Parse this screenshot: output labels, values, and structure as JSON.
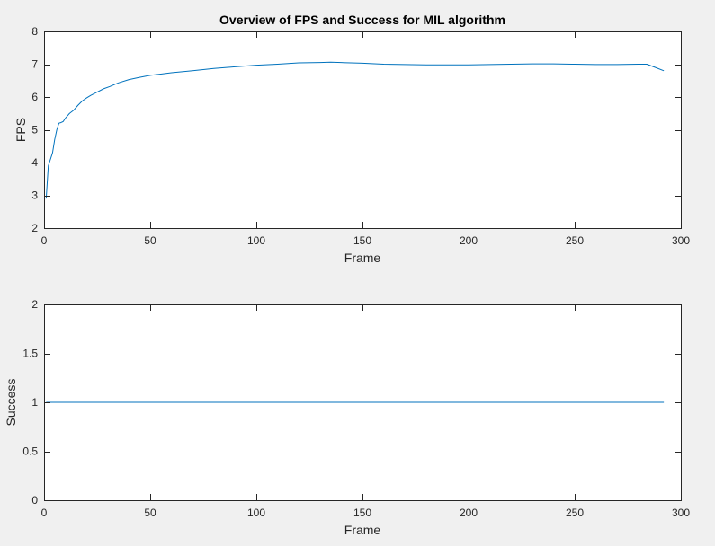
{
  "figure": {
    "background": "#f0f0f0",
    "axes_background": "#ffffff",
    "axis_color": "#262626",
    "line_color": "#0072bd"
  },
  "chart_data": [
    {
      "type": "line",
      "title": "Overview of FPS and Success for MIL algorithm",
      "xlabel": "Frame",
      "ylabel": "FPS",
      "xlim": [
        0,
        300
      ],
      "ylim": [
        2,
        8
      ],
      "xticks": [
        0,
        50,
        100,
        150,
        200,
        250,
        300
      ],
      "yticks": [
        2,
        3,
        4,
        5,
        6,
        7,
        8
      ],
      "grid": false,
      "series": [
        {
          "x": [
            1,
            2,
            3,
            4,
            5,
            6,
            7,
            8,
            9,
            10,
            12,
            14,
            16,
            18,
            20,
            22,
            25,
            28,
            31,
            35,
            40,
            45,
            50,
            55,
            60,
            70,
            80,
            90,
            100,
            110,
            120,
            130,
            135,
            140,
            150,
            160,
            170,
            180,
            190,
            200,
            210,
            220,
            230,
            240,
            250,
            260,
            270,
            280,
            284,
            288,
            292
          ],
          "y": [
            2.9,
            3.9,
            4.1,
            4.3,
            4.7,
            5.0,
            5.2,
            5.22,
            5.25,
            5.35,
            5.5,
            5.6,
            5.75,
            5.88,
            5.97,
            6.05,
            6.15,
            6.25,
            6.32,
            6.43,
            6.53,
            6.6,
            6.66,
            6.7,
            6.74,
            6.8,
            6.87,
            6.92,
            6.97,
            7.0,
            7.04,
            7.05,
            7.06,
            7.05,
            7.03,
            7.0,
            6.99,
            6.98,
            6.98,
            6.98,
            6.99,
            7.0,
            7.01,
            7.01,
            7.0,
            6.99,
            6.99,
            7.0,
            7.0,
            6.9,
            6.8
          ]
        }
      ]
    },
    {
      "type": "line",
      "title": "",
      "xlabel": "Frame",
      "ylabel": "Success",
      "xlim": [
        0,
        300
      ],
      "ylim": [
        0,
        2
      ],
      "xticks": [
        0,
        50,
        100,
        150,
        200,
        250,
        300
      ],
      "yticks": [
        0,
        0.5,
        1,
        1.5,
        2
      ],
      "grid": false,
      "series": [
        {
          "x": [
            1,
            292
          ],
          "y": [
            1,
            1
          ]
        }
      ]
    }
  ]
}
